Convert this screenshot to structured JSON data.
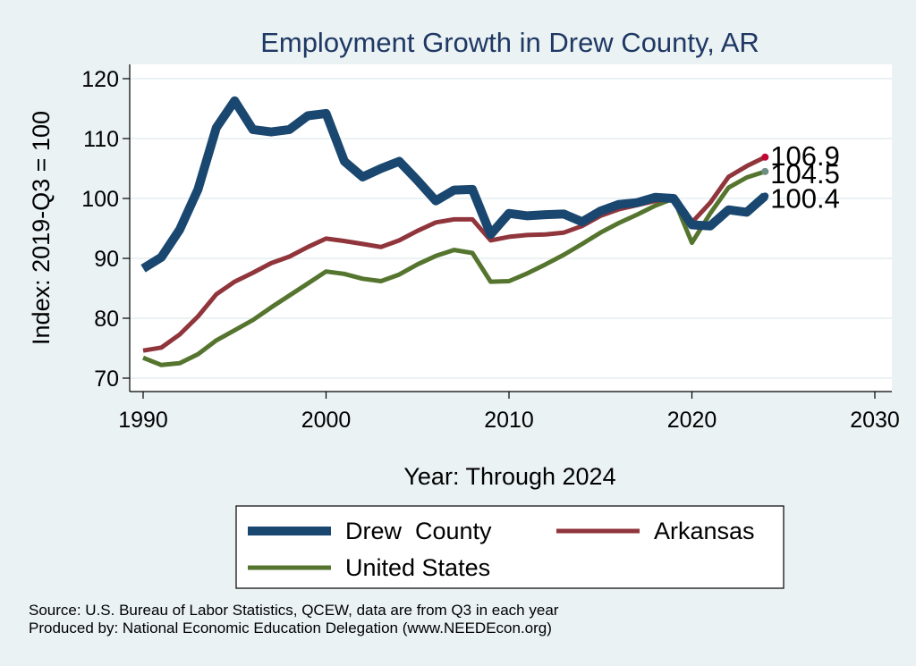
{
  "chart_data": {
    "type": "line",
    "title": "Employment Growth in Drew County, AR",
    "xlabel": "Year: Through 2024",
    "ylabel": "Index: 2019-Q3 = 100",
    "xlim": [
      1990,
      2030
    ],
    "ylim": [
      67,
      122
    ],
    "xticks": [
      1990,
      2000,
      2010,
      2020,
      2030
    ],
    "yticks": [
      70,
      80,
      90,
      100,
      110,
      120
    ],
    "grid": true,
    "legend_position": "bottom",
    "x": [
      1990,
      1991,
      1992,
      1993,
      1994,
      1995,
      1996,
      1997,
      1998,
      1999,
      2000,
      2001,
      2002,
      2003,
      2004,
      2005,
      2006,
      2007,
      2008,
      2009,
      2010,
      2011,
      2012,
      2013,
      2014,
      2015,
      2016,
      2017,
      2018,
      2019,
      2020,
      2021,
      2022,
      2023,
      2024
    ],
    "series": [
      {
        "name": "Drew  County",
        "color": "#1a476f",
        "values": [
          88.3,
          90.2,
          94.8,
          101.5,
          111.8,
          116.3,
          111.5,
          111.1,
          111.5,
          113.8,
          114.2,
          106.2,
          103.6,
          105.0,
          106.2,
          103.0,
          99.6,
          101.4,
          101.5,
          94.0,
          97.5,
          97.1,
          97.3,
          97.4,
          96.1,
          97.9,
          99.0,
          99.3,
          100.2,
          100.0,
          95.6,
          95.4,
          98.1,
          97.7,
          100.4
        ]
      },
      {
        "name": "Arkansas",
        "color": "#90353b",
        "values": [
          74.6,
          75.1,
          77.3,
          80.3,
          84.0,
          86.1,
          87.6,
          89.2,
          90.3,
          91.9,
          93.3,
          92.9,
          92.4,
          91.9,
          93.0,
          94.6,
          96.0,
          96.5,
          96.5,
          93.0,
          93.6,
          93.9,
          94.0,
          94.3,
          95.4,
          97.1,
          98.2,
          98.9,
          99.6,
          100.0,
          96.0,
          99.3,
          103.6,
          105.4,
          106.9
        ]
      },
      {
        "name": "United States",
        "color": "#55752f",
        "values": [
          73.4,
          72.2,
          72.5,
          74.0,
          76.3,
          78.0,
          79.7,
          81.8,
          83.8,
          85.8,
          87.8,
          87.4,
          86.6,
          86.2,
          87.3,
          89.0,
          90.4,
          91.4,
          90.9,
          86.1,
          86.2,
          87.5,
          89.0,
          90.6,
          92.4,
          94.3,
          95.9,
          97.3,
          98.8,
          100.0,
          92.6,
          97.5,
          101.8,
          103.5,
          104.5
        ]
      }
    ],
    "end_labels": [
      "106.9",
      "104.5",
      "100.4"
    ],
    "end_label_colors": [
      "#c10534",
      "#6e8e84",
      "#1a476f"
    ]
  },
  "source_lines": [
    "Source: U.S. Bureau of Labor Statistics, QCEW, data are from Q3 in each year",
    "Produced by: National Economic Education Delegation (www.NEEDEcon.org)"
  ]
}
